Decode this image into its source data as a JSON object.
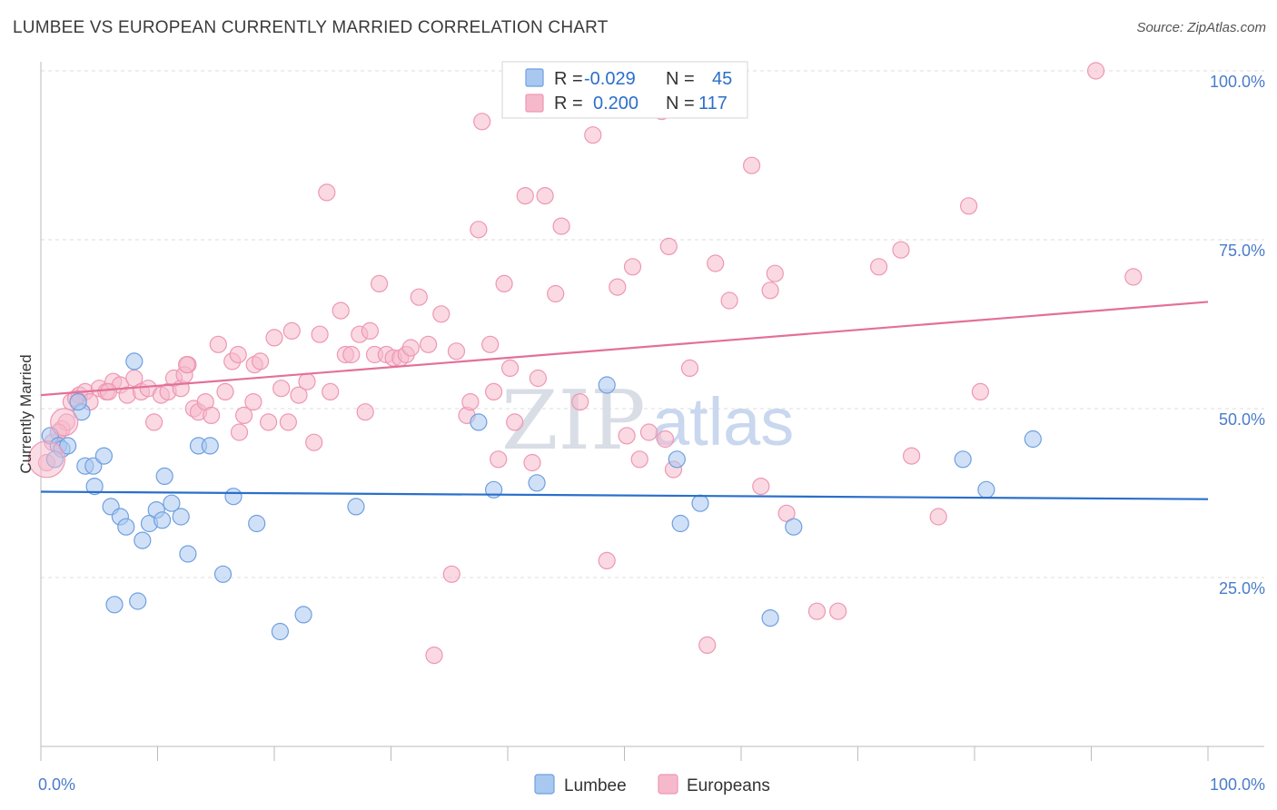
{
  "header": {
    "title": "LUMBEE VS EUROPEAN CURRENTLY MARRIED CORRELATION CHART",
    "source": "Source: ZipAtlas.com"
  },
  "watermark": {
    "zip": "ZIP",
    "atlas": "atlas"
  },
  "colors": {
    "lumbee_fill": "#a9c8f0",
    "lumbee_stroke": "#6f9fe0",
    "lumbee_line": "#2a6fcb",
    "europeans_fill": "#f6b9cc",
    "europeans_stroke": "#ee97b3",
    "europeans_line": "#e2709a",
    "grid": "#dcdcdc",
    "tick_text": "#4a7cc9"
  },
  "stats": [
    {
      "r_label": "R =",
      "r_value": "-0.029",
      "n_label": "N =",
      "n_value": "45"
    },
    {
      "r_label": "R =",
      "r_value": "0.200",
      "n_label": "N =",
      "n_value": "117"
    }
  ],
  "legend": {
    "items": [
      "Lumbee",
      "Europeans"
    ]
  },
  "chart_data": {
    "type": "scatter",
    "title": "LUMBEE VS EUROPEAN CURRENTLY MARRIED CORRELATION CHART",
    "xlabel": "",
    "ylabel": "Currently Married",
    "xlim": [
      0,
      100
    ],
    "ylim": [
      0,
      100
    ],
    "x_tick_labels": [
      "0.0%",
      "100.0%"
    ],
    "y_tick_labels": [
      "25.0%",
      "50.0%",
      "75.0%",
      "100.0%"
    ],
    "y_ticks": [
      25,
      50,
      75,
      100
    ],
    "grid": true,
    "legend_position": "bottom-center",
    "series": [
      {
        "name": "Lumbee",
        "r": -0.029,
        "n": 45,
        "trend": {
          "x": [
            0,
            100
          ],
          "y": [
            37.7,
            36.6
          ]
        },
        "points": [
          [
            0.8,
            46
          ],
          [
            1.5,
            44.5
          ],
          [
            1.8,
            44
          ],
          [
            2.3,
            44.5
          ],
          [
            3.5,
            49.5
          ],
          [
            3.8,
            41.5
          ],
          [
            4.5,
            41.5
          ],
          [
            4.6,
            38.5
          ],
          [
            5.4,
            43
          ],
          [
            6,
            35.5
          ],
          [
            6.3,
            21
          ],
          [
            6.8,
            34
          ],
          [
            7.3,
            32.5
          ],
          [
            8,
            57
          ],
          [
            8.3,
            21.5
          ],
          [
            8.7,
            30.5
          ],
          [
            9.3,
            33
          ],
          [
            9.9,
            35
          ],
          [
            10.4,
            33.5
          ],
          [
            10.6,
            40
          ],
          [
            11.2,
            36
          ],
          [
            12,
            34
          ],
          [
            12.6,
            28.5
          ],
          [
            13.5,
            44.5
          ],
          [
            14.5,
            44.5
          ],
          [
            15.6,
            25.5
          ],
          [
            16.5,
            37
          ],
          [
            18.5,
            33
          ],
          [
            20.5,
            17
          ],
          [
            22.5,
            19.5
          ],
          [
            27,
            35.5
          ],
          [
            37.5,
            48
          ],
          [
            38.8,
            38
          ],
          [
            42.5,
            39
          ],
          [
            48.5,
            53.5
          ],
          [
            54.5,
            42.5
          ],
          [
            54.8,
            33
          ],
          [
            56.5,
            36
          ],
          [
            62.5,
            19
          ],
          [
            64.5,
            32.5
          ],
          [
            79,
            42.5
          ],
          [
            81,
            38
          ],
          [
            85,
            45.5
          ],
          [
            1.2,
            42.5
          ],
          [
            3.2,
            51
          ]
        ]
      },
      {
        "name": "Europeans",
        "r": 0.2,
        "n": 117,
        "trend": {
          "x": [
            0,
            100
          ],
          "y": [
            52.0,
            65.8
          ]
        },
        "points": [
          [
            0.5,
            42
          ],
          [
            1,
            45
          ],
          [
            1.8,
            47
          ],
          [
            2.2,
            48
          ],
          [
            2.6,
            51
          ],
          [
            3.3,
            52
          ],
          [
            3.8,
            52.5
          ],
          [
            4.2,
            51
          ],
          [
            5,
            53
          ],
          [
            5.6,
            52.5
          ],
          [
            6.2,
            54
          ],
          [
            6.8,
            53.5
          ],
          [
            7.4,
            52
          ],
          [
            8,
            54.5
          ],
          [
            8.6,
            52.5
          ],
          [
            9.2,
            53
          ],
          [
            9.7,
            48
          ],
          [
            10.3,
            52
          ],
          [
            10.9,
            52.5
          ],
          [
            11.4,
            54.5
          ],
          [
            12,
            53
          ],
          [
            12.6,
            56.5
          ],
          [
            12.3,
            55
          ],
          [
            13.1,
            50
          ],
          [
            13.5,
            49.5
          ],
          [
            14.1,
            51
          ],
          [
            14.6,
            49
          ],
          [
            15.2,
            59.5
          ],
          [
            15.8,
            52.5
          ],
          [
            16.4,
            57
          ],
          [
            17,
            46.5
          ],
          [
            17.4,
            49
          ],
          [
            18.2,
            51
          ],
          [
            18.3,
            56.5
          ],
          [
            18.8,
            57
          ],
          [
            19.5,
            48
          ],
          [
            20,
            60.5
          ],
          [
            20.6,
            53
          ],
          [
            21.2,
            48
          ],
          [
            21.5,
            61.5
          ],
          [
            22.1,
            52
          ],
          [
            22.8,
            54
          ],
          [
            23.4,
            45
          ],
          [
            23.9,
            61
          ],
          [
            24.5,
            82
          ],
          [
            24.8,
            52.5
          ],
          [
            25.7,
            64.5
          ],
          [
            26.1,
            58
          ],
          [
            26.6,
            58
          ],
          [
            27.3,
            61
          ],
          [
            27.8,
            49.5
          ],
          [
            28.2,
            61.5
          ],
          [
            28.6,
            58
          ],
          [
            29,
            68.5
          ],
          [
            29.6,
            58
          ],
          [
            30.2,
            57.5
          ],
          [
            30.8,
            57.5
          ],
          [
            31.3,
            58
          ],
          [
            31.7,
            59
          ],
          [
            32.4,
            66.5
          ],
          [
            33.2,
            59.5
          ],
          [
            34.3,
            64
          ],
          [
            35.2,
            25.5
          ],
          [
            35.6,
            58.5
          ],
          [
            36.5,
            49
          ],
          [
            36.8,
            51
          ],
          [
            37.5,
            76.5
          ],
          [
            37.8,
            92.5
          ],
          [
            38.5,
            59.5
          ],
          [
            38.8,
            52.5
          ],
          [
            39.2,
            42.5
          ],
          [
            39.7,
            68.5
          ],
          [
            40.2,
            56
          ],
          [
            40.6,
            48
          ],
          [
            41.5,
            81.5
          ],
          [
            42.1,
            42
          ],
          [
            42.6,
            54.5
          ],
          [
            43.2,
            81.5
          ],
          [
            44.1,
            67
          ],
          [
            44.6,
            77
          ],
          [
            46.2,
            51
          ],
          [
            47.3,
            90.5
          ],
          [
            48.5,
            27.5
          ],
          [
            49.4,
            68
          ],
          [
            50.2,
            46
          ],
          [
            50.7,
            71
          ],
          [
            51.3,
            42.5
          ],
          [
            52.1,
            46.5
          ],
          [
            53.2,
            94
          ],
          [
            53.5,
            45.5
          ],
          [
            53.8,
            74
          ],
          [
            54.2,
            41
          ],
          [
            55.6,
            56
          ],
          [
            57.1,
            15
          ],
          [
            57.8,
            71.5
          ],
          [
            59,
            66
          ],
          [
            60.9,
            86
          ],
          [
            61.7,
            38.5
          ],
          [
            62.5,
            67.5
          ],
          [
            62.9,
            70
          ],
          [
            63.9,
            34.5
          ],
          [
            66.5,
            20
          ],
          [
            68.3,
            20
          ],
          [
            71.8,
            71
          ],
          [
            73.7,
            73.5
          ],
          [
            74.6,
            43
          ],
          [
            76.9,
            34
          ],
          [
            79.5,
            80
          ],
          [
            80.5,
            52.5
          ],
          [
            90.4,
            100
          ],
          [
            93.6,
            69.5
          ],
          [
            33.7,
            13.5
          ],
          [
            5.8,
            52.5
          ],
          [
            12.5,
            56.5
          ],
          [
            16.9,
            58
          ],
          [
            3,
            51.5
          ],
          [
            1.5,
            46.5
          ]
        ]
      }
    ]
  }
}
